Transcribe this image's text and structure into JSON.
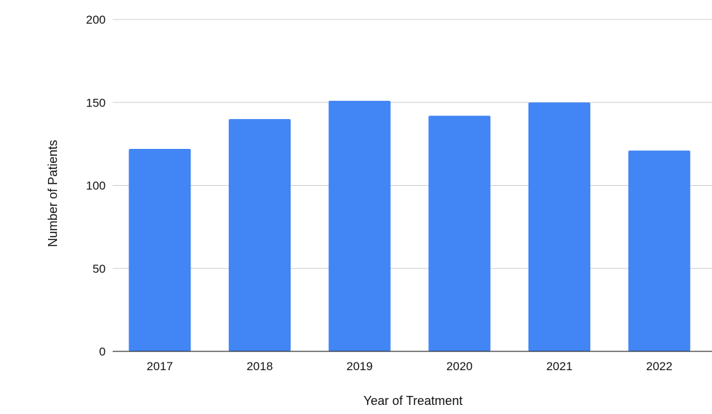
{
  "chart_data": {
    "type": "bar",
    "title": "",
    "xlabel": "Year of Treatment",
    "ylabel": "Number of Patients",
    "categories": [
      "2017",
      "2018",
      "2019",
      "2020",
      "2021",
      "2022"
    ],
    "series": [
      {
        "values": [
          122,
          140,
          151,
          142,
          150,
          121
        ],
        "color": "#4285f4"
      }
    ],
    "ylim": [
      0,
      200
    ],
    "yticks": [
      "0",
      "50",
      "100",
      "150",
      "200"
    ],
    "grid": true,
    "legend": "none",
    "colors": {
      "bar": "#4285f4",
      "gridline": "#cccccc",
      "baseline": "#333333",
      "text": "#111111"
    }
  }
}
